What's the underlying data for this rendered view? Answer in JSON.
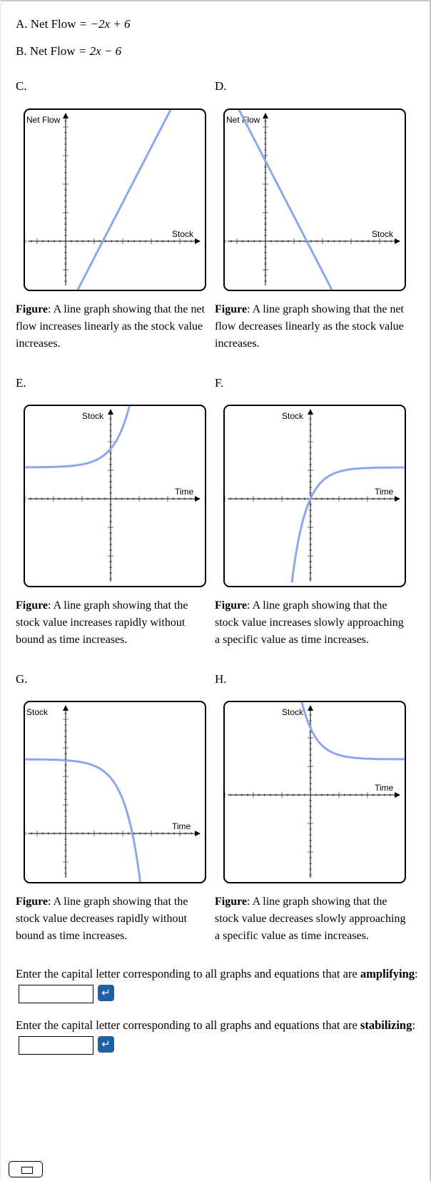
{
  "equations": [
    {
      "prefix": "A. Net Flow",
      "expr": "= −2x + 6"
    },
    {
      "prefix": "B. Net Flow",
      "expr": "= 2x − 6"
    }
  ],
  "graphs": [
    {
      "letter": "C.",
      "ylabel": "Net Flow",
      "xlabel": "Stock",
      "curve": "increasing-line",
      "color": "#8aa8f0",
      "caption_bold": "Figure",
      "caption_text": ": A line graph showing that the net flow increases linearly as the stock value increases."
    },
    {
      "letter": "D.",
      "ylabel": "Net Flow",
      "xlabel": "Stock",
      "curve": "decreasing-line",
      "color": "#8aa8f0",
      "caption_bold": "Figure",
      "caption_text": ": A line graph showing that the net flow decreases linearly as the stock value increases."
    },
    {
      "letter": "E.",
      "ylabel": "Stock",
      "xlabel": "Time",
      "curve": "exponential-growth",
      "color": "#8aa8f0",
      "caption_bold": "Figure",
      "caption_text": ": A line graph showing that the stock value increases rapidly without bound as time increases."
    },
    {
      "letter": "F.",
      "ylabel": "Stock",
      "xlabel": "Time",
      "curve": "approach-from-below",
      "color": "#8aa8f0",
      "caption_bold": "Figure",
      "caption_text": ": A line graph showing that the stock value increases slowly approaching a specific value as time increases."
    },
    {
      "letter": "G.",
      "ylabel": "Stock",
      "xlabel": "Time",
      "curve": "exponential-decline",
      "color": "#8aa8f0",
      "caption_bold": "Figure",
      "caption_text": ": A line graph showing that the stock value decreases rapidly without bound as time increases."
    },
    {
      "letter": "H.",
      "ylabel": "Stock",
      "xlabel": "Time",
      "curve": "approach-from-above",
      "color": "#8aa8f0",
      "caption_bold": "Figure",
      "caption_text": ": A line graph showing that the stock value decreases slowly approaching a specific value as time increases."
    }
  ],
  "questions": [
    {
      "text": "Enter the capital letter corresponding to all graphs and equations that are ",
      "bold": "amplifying",
      "suffix": ":",
      "value": ""
    },
    {
      "text": "Enter the capital letter corresponding to all graphs and equations that are ",
      "bold": "stabilizing",
      "suffix": ":",
      "value": ""
    }
  ],
  "enter_icon": "return-arrow-icon",
  "keyboard_icon": "keyboard-icon"
}
